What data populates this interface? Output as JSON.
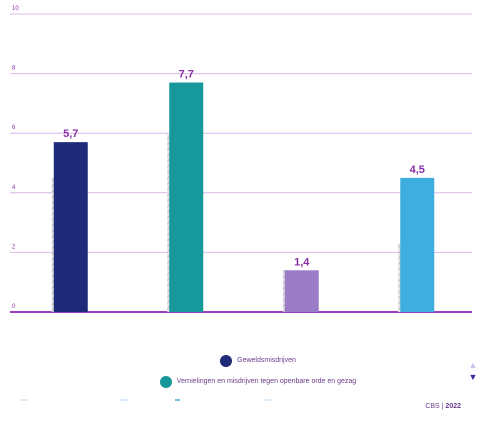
{
  "chart_data": {
    "type": "bar",
    "title": "",
    "xlabel": "",
    "ylabel": "",
    "ylim": [
      0,
      10
    ],
    "yticks": [
      "0",
      "2",
      "4",
      "6",
      "8",
      "10"
    ],
    "grid": true,
    "legend_position": "bottom",
    "groups": [
      {
        "reference": 4.5,
        "value": 5.7,
        "label": "5,7",
        "color": "#1f2a78"
      },
      {
        "reference": 6.0,
        "value": 7.7,
        "label": "7,7",
        "color": "#17989a"
      },
      {
        "reference": 1.4,
        "value": 1.4,
        "label": "1,4",
        "color": "#9b7cc6"
      },
      {
        "reference": 2.3,
        "value": 4.5,
        "label": "4,5",
        "color": "#3eaee0"
      }
    ],
    "series": [
      {
        "name": "Geweldsmisdrijven",
        "color": "#1f2a78"
      },
      {
        "name": "Vernielingen en misdrijven tegen openbare orde en gezag",
        "color": "#17989a"
      }
    ]
  },
  "source": {
    "org": "CBS |",
    "year": "2022"
  },
  "nav": {
    "up_icon": "▲",
    "down_icon": "▼"
  }
}
